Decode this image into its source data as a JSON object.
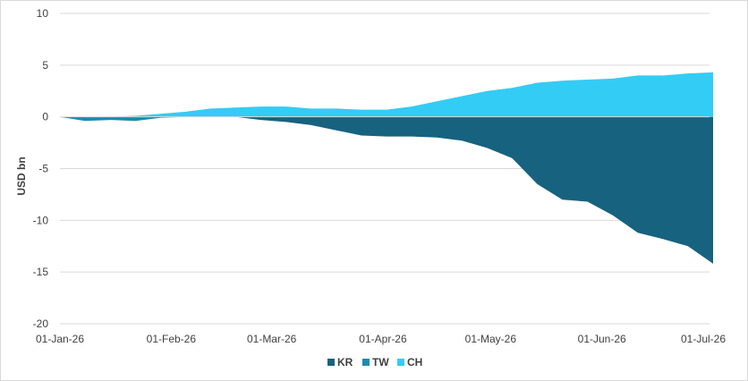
{
  "chart_data": {
    "type": "area",
    "title": "",
    "xlabel": "",
    "ylabel": "USD bn",
    "ylim": [
      -20,
      10
    ],
    "y_ticks": [
      "10",
      "5",
      "0",
      "-5",
      "-10",
      "-15",
      "-20"
    ],
    "y_tick_values": [
      10,
      5,
      0,
      -5,
      -10,
      -15,
      -20
    ],
    "x_ticks": [
      "01-Jan-26",
      "01-Feb-26",
      "01-Mar-26",
      "01-Apr-26",
      "01-May-26",
      "01-Jun-26",
      "01-Jul-26"
    ],
    "x_tick_dates": [
      "2026-01-01",
      "2026-02-01",
      "2026-03-01",
      "2026-04-01",
      "2026-05-01",
      "2026-06-01",
      "2026-07-01"
    ],
    "grid": true,
    "legend_position": "bottom",
    "series": [
      {
        "name": "KR",
        "color": "#17627f",
        "x": [
          "2026-01-01",
          "2026-01-08",
          "2026-01-15",
          "2026-01-22",
          "2026-01-29",
          "2026-02-05",
          "2026-02-12",
          "2026-02-19",
          "2026-02-26",
          "2026-03-05",
          "2026-03-12",
          "2026-03-19",
          "2026-03-26",
          "2026-04-02",
          "2026-04-09",
          "2026-04-16",
          "2026-04-23",
          "2026-04-30",
          "2026-05-07",
          "2026-05-14",
          "2026-05-21",
          "2026-05-28",
          "2026-06-04",
          "2026-06-11",
          "2026-06-18",
          "2026-06-25",
          "2026-07-02"
        ],
        "values": [
          0,
          0,
          0,
          0,
          0,
          0,
          0,
          0,
          -0.3,
          -0.5,
          -0.8,
          -1.3,
          -1.8,
          -1.9,
          -1.9,
          -2.0,
          -2.3,
          -3.0,
          -4.0,
          -6.5,
          -8.0,
          -8.2,
          -9.5,
          -11.2,
          -11.8,
          -12.5,
          -14.2
        ]
      },
      {
        "name": "TW",
        "color": "#1c8bb0",
        "x": [
          "2026-01-01",
          "2026-01-08",
          "2026-01-15",
          "2026-01-22",
          "2026-01-29",
          "2026-02-05",
          "2026-02-12",
          "2026-02-19",
          "2026-02-26",
          "2026-03-05",
          "2026-03-12",
          "2026-03-19",
          "2026-03-26",
          "2026-04-02",
          "2026-04-09",
          "2026-04-16",
          "2026-04-23",
          "2026-04-30",
          "2026-05-07",
          "2026-05-14",
          "2026-05-21",
          "2026-05-28",
          "2026-06-04",
          "2026-06-11",
          "2026-06-18",
          "2026-06-25",
          "2026-07-02"
        ],
        "values": [
          0,
          -0.4,
          -0.3,
          -0.4,
          -0.1,
          0,
          0,
          0,
          0,
          0,
          0,
          0,
          0,
          0,
          0,
          0,
          0,
          0,
          0,
          0,
          0,
          0,
          0,
          0,
          0,
          0,
          0
        ]
      },
      {
        "name": "CH",
        "color": "#33ccf5",
        "x": [
          "2026-01-01",
          "2026-01-08",
          "2026-01-15",
          "2026-01-22",
          "2026-01-29",
          "2026-02-05",
          "2026-02-12",
          "2026-02-19",
          "2026-02-26",
          "2026-03-05",
          "2026-03-12",
          "2026-03-19",
          "2026-03-26",
          "2026-04-02",
          "2026-04-09",
          "2026-04-16",
          "2026-04-23",
          "2026-04-30",
          "2026-05-07",
          "2026-05-14",
          "2026-05-21",
          "2026-05-28",
          "2026-06-04",
          "2026-06-11",
          "2026-06-18",
          "2026-06-25",
          "2026-07-02"
        ],
        "values": [
          0,
          0,
          0,
          0.1,
          0.3,
          0.5,
          0.8,
          0.9,
          1.0,
          1.0,
          0.8,
          0.8,
          0.7,
          0.7,
          1.0,
          1.5,
          2.0,
          2.5,
          2.8,
          3.3,
          3.5,
          3.6,
          3.7,
          4.0,
          4.0,
          4.2,
          4.3
        ]
      }
    ]
  }
}
